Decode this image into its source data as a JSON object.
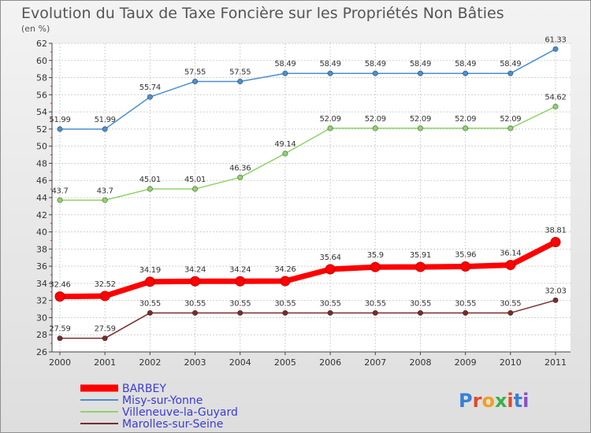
{
  "chart_data": {
    "type": "line",
    "title": "Evolution du Taux de Taxe Foncière sur les Propriétés Non Bâties",
    "subtitle": "(en %)",
    "x": [
      "2000",
      "2001",
      "2002",
      "2003",
      "2004",
      "2005",
      "2006",
      "2007",
      "2008",
      "2009",
      "2010",
      "2011"
    ],
    "yticks": [
      "26",
      "28",
      "30",
      "32",
      "34",
      "36",
      "38",
      "40",
      "42",
      "44",
      "46",
      "48",
      "50",
      "52",
      "54",
      "56",
      "58",
      "60",
      "62"
    ],
    "ylim": [
      26,
      62
    ],
    "grid": true,
    "legend_position": "bottom-left",
    "series": [
      {
        "name": "BARBEY",
        "color": "#ff0000",
        "values": [
          32.46,
          32.52,
          34.19,
          34.24,
          34.24,
          34.26,
          35.64,
          35.9,
          35.91,
          35.96,
          36.14,
          38.81
        ],
        "labels": [
          "32.46",
          "32.52",
          "34.19",
          "34.24",
          "34.24",
          "34.26",
          "35.64",
          "35.9",
          "35.91",
          "35.96",
          "36.14",
          "38.81"
        ]
      },
      {
        "name": "Misy-sur-Yonne",
        "color": "#4a8fd0",
        "values": [
          51.99,
          51.99,
          55.74,
          57.55,
          57.55,
          58.49,
          58.49,
          58.49,
          58.49,
          58.49,
          58.49,
          61.33
        ],
        "labels": [
          "51.99",
          "51.99",
          "55.74",
          "57.55",
          "57.55",
          "58.49",
          "58.49",
          "58.49",
          "58.49",
          "58.49",
          "58.49",
          "61.33"
        ]
      },
      {
        "name": "Villeneuve-la-Guyard",
        "color": "#8fd36a",
        "values": [
          43.7,
          43.7,
          45.01,
          45.01,
          46.36,
          49.14,
          52.09,
          52.09,
          52.09,
          52.09,
          52.09,
          54.62
        ],
        "labels": [
          "43.7",
          "43.7",
          "45.01",
          "45.01",
          "46.36",
          "49.14",
          "52.09",
          "52.09",
          "52.09",
          "52.09",
          "52.09",
          "54.62"
        ]
      },
      {
        "name": "Marolles-sur-Seine",
        "color": "#7a2c2c",
        "values": [
          27.59,
          27.59,
          30.55,
          30.55,
          30.55,
          30.55,
          30.55,
          30.55,
          30.55,
          30.55,
          30.55,
          32.03
        ],
        "labels": [
          "27.59",
          "27.59",
          "30.55",
          "30.55",
          "30.55",
          "30.55",
          "30.55",
          "30.55",
          "30.55",
          "30.55",
          "30.55",
          "32.03"
        ]
      }
    ]
  },
  "legend": [
    "BARBEY",
    "Misy-sur-Yonne",
    "Villeneuve-la-Guyard",
    "Marolles-sur-Seine"
  ],
  "logo": {
    "letters": [
      "P",
      "r",
      "o",
      "x",
      "i",
      "t",
      "i"
    ],
    "colors": [
      "#3a7fd8",
      "#e04b2a",
      "#f0a020",
      "#3ab04a",
      "#e04b2a",
      "#3a7fd8",
      "#8a4fc8"
    ]
  }
}
